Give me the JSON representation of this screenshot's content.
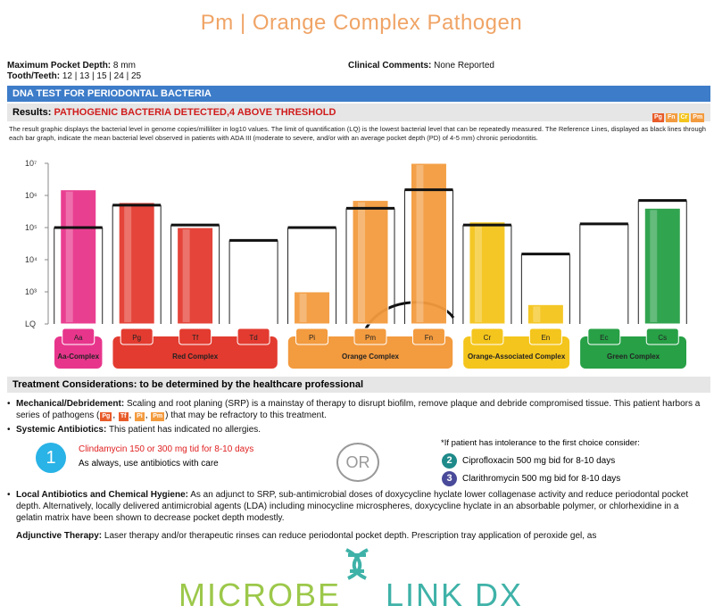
{
  "header": {
    "title": "Pm | Orange Complex Pathogen"
  },
  "report": {
    "pocket_depth_label": "Maximum Pocket Depth:",
    "pocket_depth": "8 mm",
    "teeth_label": "Tooth/Teeth:",
    "teeth": "12 | 13 | 15 | 24 | 25",
    "comments_label": "Clinical Comments:",
    "comments": "None Reported",
    "section_title": "DNA TEST FOR PERIODONTAL BACTERIA",
    "results_label": "Results:",
    "results": "PATHOGENIC BACTERIA DETECTED,4 ABOVE THRESHOLD",
    "legend_icons": [
      "Pg",
      "Fn",
      "Cr",
      "Pm"
    ],
    "description": "The result graphic displays the bacterial level in genome copies/milliliter in log10 values. The limit of quantification (LQ) is the lowest bacterial level that can be repeatedly measured. The Reference Lines, displayed as black lines through each bar graph, indicate the mean bacterial level observed in patients with ADA III (moderate to severe, and/or with an average pocket depth (PD) of 4-5 mm) chronic periodontitis."
  },
  "chart": {
    "type": "bar",
    "log_scale": true,
    "ylim": [
      100,
      10000000
    ],
    "yticks": [
      {
        "value": 100,
        "label": "LQ"
      },
      {
        "value": 1000,
        "label": "10³"
      },
      {
        "value": 10000,
        "label": "10⁴"
      },
      {
        "value": 100000,
        "label": "10⁵"
      },
      {
        "value": 1000000,
        "label": "10⁶"
      },
      {
        "value": 10000000,
        "label": "10⁷"
      }
    ],
    "categories": [
      "Aa",
      "Pg",
      "Tf",
      "Td",
      "Pi",
      "Pm",
      "Fn",
      "Cr",
      "En",
      "Ec",
      "Cs"
    ],
    "values": [
      1500000,
      600000,
      100000,
      null,
      1000,
      700000,
      10000000,
      150000,
      400,
      null,
      400000
    ],
    "reference": [
      100000,
      500000,
      120000,
      40000,
      100000,
      400000,
      1500000,
      120000,
      15000,
      130000,
      700000
    ],
    "groups": [
      {
        "label": "Aa-Complex",
        "color": "#e8358c",
        "size": 1
      },
      {
        "label": "Red Complex",
        "color": "#e33b30",
        "size": 3
      },
      {
        "label": "Orange Complex",
        "color": "#f39b3f",
        "size": 3
      },
      {
        "label": "Orange-Associated Complex",
        "color": "#f4c51c",
        "size": 2
      },
      {
        "label": "Green Complex",
        "color": "#27a046",
        "size": 2
      }
    ]
  },
  "treatment": {
    "title": "Treatment Considerations: to be determined by the healthcare professional",
    "mechanical": {
      "label": "Mechanical/Debridement:",
      "text_before": "Scaling and root planing (SRP) is a mainstay of therapy to disrupt biofilm, remove plaque and debride compromised tissue. This patient harbors a series of pathogens (",
      "pathogens": [
        "Pg",
        "Tf",
        "Pi",
        "Pm"
      ],
      "text_after": ") that may be refractory to this treatment."
    },
    "systemic": {
      "label": "Systemic Antibiotics:",
      "text": "This patient has indicated no allergies."
    },
    "option1": {
      "number": "1",
      "drug": "Clindamycin 150 or 300 mg tid for 8-10 days",
      "note": "As always, use antibiotics with care"
    },
    "or": "OR",
    "alternative_note": "*If patient has intolerance to the first choice consider:",
    "option2": {
      "number": "2",
      "drug": "Ciprofloxacin 500 mg bid for 8-10 days"
    },
    "option3": {
      "number": "3",
      "drug": "Clarithromycin 500 mg bid for 8-10 days"
    },
    "local": {
      "label": "Local Antibiotics and Chemical Hygiene:",
      "text": "As an adjunct to SRP, sub-antimicrobial doses of doxycycline hyclate lower collagenase activity and reduce periodontal pocket depth. Alternatively, locally delivered antimicrobial agents (LDA) including minocycline microspheres, doxycycline hyclate in an absorbable polymer, or chlorhexidine in a gelatin matrix have been shown to decrease pocket depth modestly."
    },
    "adjunctive": {
      "label": "Adjunctive Therapy:",
      "text": "Laser therapy and/or therapeutic rinses can reduce periodontal pocket depth. Prescription tray application of peroxide gel, as"
    }
  },
  "footer": {
    "logo_left": "MICROBE",
    "logo_right": "LINK DX"
  }
}
